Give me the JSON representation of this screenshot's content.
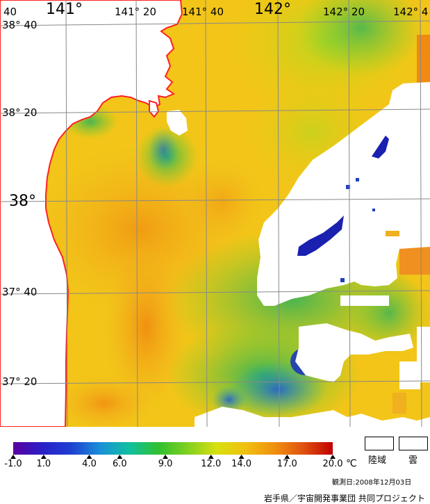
{
  "map": {
    "title": "",
    "longitude_labels": [
      {
        "text": "141°",
        "style": "big"
      },
      {
        "text": "141° 20",
        "style": "normal"
      },
      {
        "text": "141° 40",
        "style": "normal"
      },
      {
        "text": "142°",
        "style": "big"
      },
      {
        "text": "142° 20",
        "style": "normal"
      },
      {
        "text": "142° 4",
        "style": "normal"
      }
    ],
    "latitude_labels": [
      {
        "text": "38° 40",
        "style": "normal"
      },
      {
        "text": "38° 20",
        "style": "normal"
      },
      {
        "text": "38°",
        "style": "big"
      },
      {
        "text": "37° 40",
        "style": "normal"
      },
      {
        "text": "37° 20",
        "style": "normal"
      }
    ],
    "corner_fragment": "40",
    "coastline_color": "#ff2020",
    "land_color": "#ffffff",
    "cloud_color": "#ffffff"
  },
  "colorbar": {
    "unit": "℃",
    "ticks": [
      "-1.0",
      "1.0",
      "4.0",
      "6.0",
      "9.0",
      "12.0",
      "14.0",
      "17.0",
      "20.0"
    ],
    "tick_values": [
      -1.0,
      1.0,
      4.0,
      6.0,
      9.0,
      12.0,
      14.0,
      17.0,
      20.0
    ],
    "range": [
      -1.0,
      20.0
    ],
    "colors": [
      "#5a00a0",
      "#2a20c8",
      "#1e40d0",
      "#1a90d8",
      "#10c0a0",
      "#30c030",
      "#80d020",
      "#d8e010",
      "#f0c010",
      "#f09010",
      "#e05010",
      "#c00000"
    ]
  },
  "legend": {
    "land_label": "陸域",
    "cloud_label": "雲"
  },
  "observation_date": "観測日:2008年12月03日",
  "credit": "岩手県／宇宙開発事業団 共同プロジェクト"
}
